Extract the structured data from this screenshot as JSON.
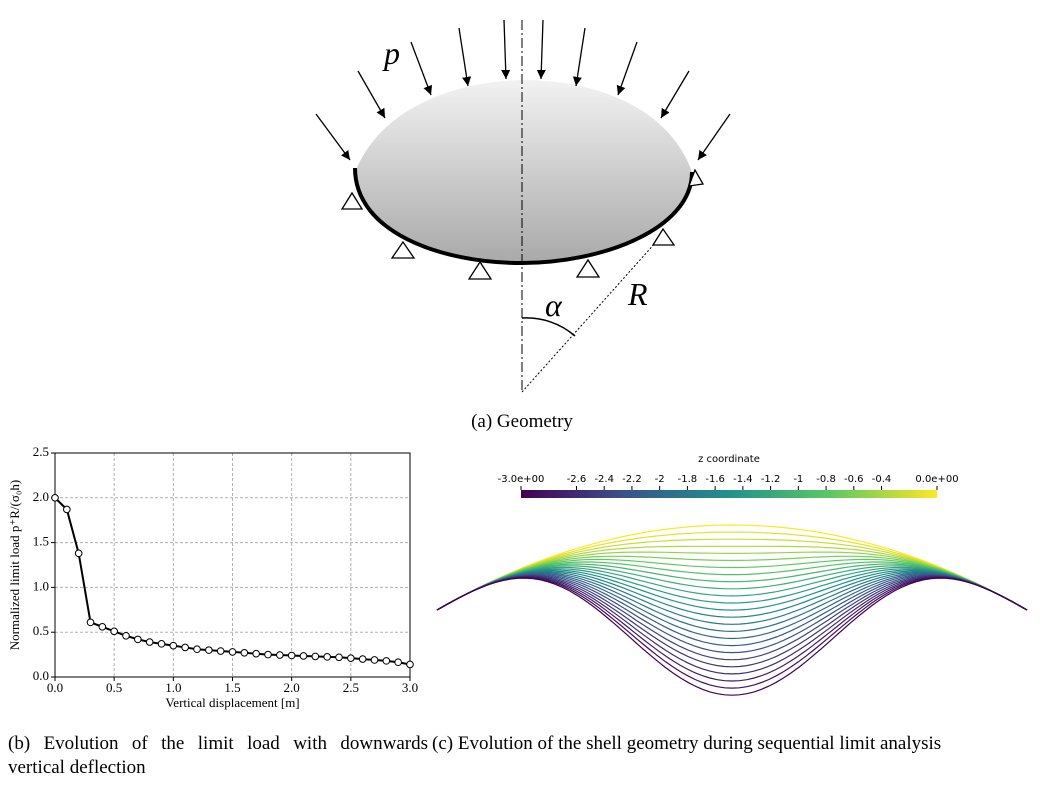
{
  "geometry": {
    "load_label": "p",
    "angle_label": "α",
    "radius_label": "R",
    "caption": "(a) Geometry"
  },
  "chart_data": {
    "type": "line",
    "ylabel": "Normalized limit load p⁺R/(σ₀h)",
    "xlabel": "Vertical displacement [m]",
    "x": [
      0,
      0.1,
      0.2,
      0.3,
      0.4,
      0.5,
      0.6,
      0.7,
      0.8,
      0.9,
      1.0,
      1.1,
      1.2,
      1.3,
      1.4,
      1.5,
      1.6,
      1.7,
      1.8,
      1.9,
      2.0,
      2.1,
      2.2,
      2.3,
      2.4,
      2.5,
      2.6,
      2.7,
      2.8,
      2.9,
      3.0
    ],
    "values": [
      2.0,
      1.87,
      1.38,
      0.61,
      0.56,
      0.51,
      0.46,
      0.42,
      0.39,
      0.37,
      0.35,
      0.33,
      0.31,
      0.3,
      0.29,
      0.28,
      0.27,
      0.26,
      0.25,
      0.245,
      0.24,
      0.235,
      0.23,
      0.225,
      0.22,
      0.21,
      0.2,
      0.19,
      0.18,
      0.165,
      0.14
    ],
    "color": "#000000",
    "xlim": [
      0,
      3
    ],
    "ylim": [
      0,
      2.5
    ],
    "xticks": [
      {
        "value": 0,
        "label": "0.0"
      },
      0.5,
      {
        "value": 1,
        "label": "1.0"
      },
      1.5,
      {
        "value": 2,
        "label": "2.0"
      },
      2.5,
      {
        "value": 3,
        "label": "3.0"
      }
    ],
    "yticks": [
      {
        "value": 0,
        "label": "0.0"
      },
      0.5,
      {
        "value": 1,
        "label": "1.0"
      },
      1.5,
      {
        "value": 2,
        "label": "2.0"
      },
      2.5
    ],
    "grid": true,
    "caption": "(b) Evolution of the limit load with downwards vertical deflection"
  },
  "shell": {
    "colorbar_title": "z coordinate",
    "lim": [
      -3,
      0
    ],
    "ticks": [
      {
        "value": -3,
        "label": "-3.0e+00"
      },
      -2.6,
      -2.4,
      -2.2,
      -2,
      -1.8,
      -1.6,
      -1.4,
      -1.2,
      -1,
      -0.8,
      -0.6,
      -0.4,
      {
        "value": 0,
        "label": "0.0e+00"
      }
    ],
    "caption": "(c) Evolution of the shell geometry during sequential limit analysis"
  }
}
